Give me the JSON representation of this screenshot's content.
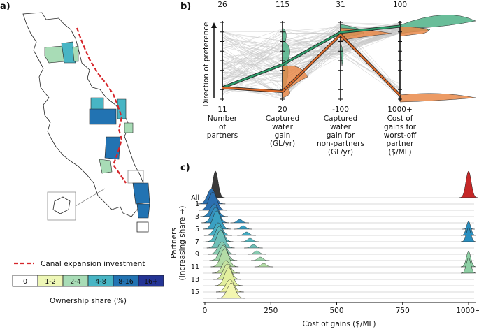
{
  "panels": {
    "a": "a)",
    "b": "b)",
    "c": "c)"
  },
  "map": {
    "legend_line_label": "Canal expansion investment",
    "legend_title": "Ownership share (%)",
    "legend_bins": [
      "0",
      "1-2",
      "2-4",
      "4-8",
      "8-16",
      "16+"
    ],
    "legend_colors": [
      "#ffffff",
      "#eef7b6",
      "#a8dcb6",
      "#48b5c4",
      "#2273b2",
      "#243495"
    ],
    "line_color": "#d6262b"
  },
  "chart_data": [
    {
      "type": "parallel-coordinates",
      "panel": "b",
      "ylabel": "Direction of preference",
      "axes": [
        {
          "top": "26",
          "bottom": "11",
          "label": [
            "Number",
            "of",
            "partners"
          ]
        },
        {
          "top": "115",
          "bottom": "20",
          "label": [
            "Captured",
            "water",
            "gain",
            "(GL/yr)"
          ]
        },
        {
          "top": "31",
          "bottom": "-100",
          "label": [
            "Captured",
            "water",
            "gain for",
            "non-partners",
            "(GL/yr)"
          ]
        },
        {
          "top": "100",
          "bottom": "1000+",
          "label": [
            "Cost of",
            "gains for",
            "worst-off",
            "partner",
            "($/ML)"
          ]
        }
      ],
      "highlighted_solutions": [
        {
          "name": "green",
          "color": "#2e9d6b",
          "values_normalized": [
            0.15,
            0.45,
            0.87,
            0.95
          ]
        },
        {
          "name": "orange",
          "color": "#d9692b",
          "values_normalized": [
            0.15,
            0.1,
            0.84,
            0.05
          ]
        }
      ]
    },
    {
      "type": "ridgeline",
      "panel": "c",
      "xlabel": "Cost of gains ($/ML)",
      "ylabel": "Partners",
      "ylabel2": "(Increasing share →)",
      "xticks": [
        "0",
        "250",
        "500",
        "750",
        "1000+"
      ],
      "xlim": [
        0,
        1000
      ],
      "rows": [
        "All",
        "1",
        "",
        "3",
        "",
        "5",
        "",
        "7",
        "",
        "9",
        "",
        "11",
        "",
        "13",
        "",
        "15",
        ""
      ],
      "all_peaks": [
        {
          "x": 40,
          "color": "#3a3a3a"
        },
        {
          "x": 1000,
          "color": "#c62828"
        }
      ]
    }
  ]
}
